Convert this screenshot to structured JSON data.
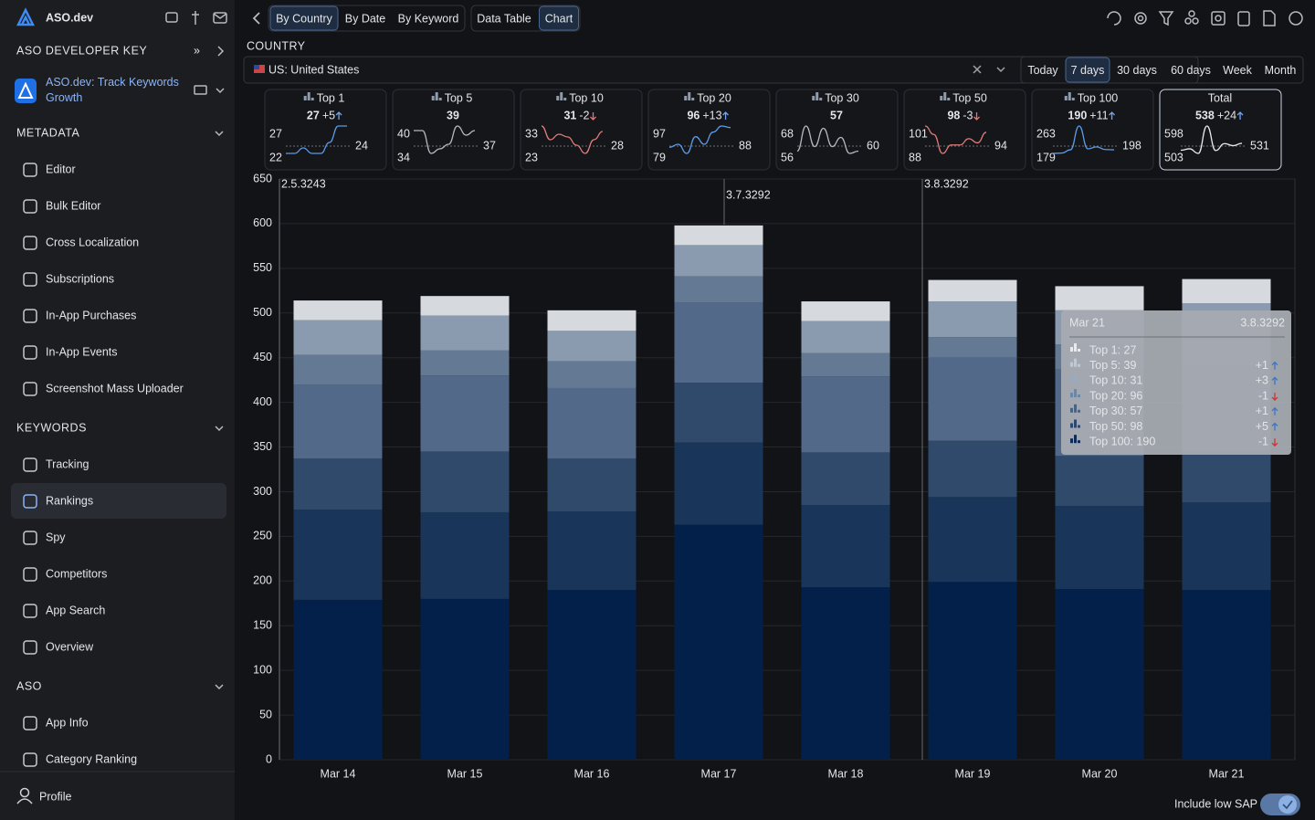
{
  "sidebar": {
    "brand": "ASO.dev",
    "key_section": "ASO DEVELOPER KEY",
    "app_name": "ASO.dev: Track Keywords Growth",
    "sections": [
      {
        "title": "METADATA",
        "items": [
          {
            "label": "Editor"
          },
          {
            "label": "Bulk Editor"
          },
          {
            "label": "Cross Localization"
          },
          {
            "label": "Subscriptions"
          },
          {
            "label": "In-App Purchases"
          },
          {
            "label": "In-App Events"
          },
          {
            "label": "Screenshot Mass Uploader"
          }
        ]
      },
      {
        "title": "KEYWORDS",
        "items": [
          {
            "label": "Tracking"
          },
          {
            "label": "Rankings",
            "active": true
          },
          {
            "label": "Spy"
          },
          {
            "label": "Competitors"
          },
          {
            "label": "App Search"
          },
          {
            "label": "Overview"
          }
        ]
      },
      {
        "title": "ASO",
        "items": [
          {
            "label": "App Info"
          },
          {
            "label": "Category Ranking"
          }
        ]
      }
    ],
    "profile": "Profile"
  },
  "toolbar": {
    "views": [
      {
        "label": "By Country",
        "active": true
      },
      {
        "label": "By Date"
      },
      {
        "label": "By Keyword"
      }
    ],
    "modes": [
      {
        "label": "Data Table"
      },
      {
        "label": "Chart",
        "active": true
      }
    ]
  },
  "filter": {
    "label": "COUNTRY",
    "country": "US: United States",
    "periods": [
      {
        "label": "Today"
      },
      {
        "label": "7 days",
        "active": true
      },
      {
        "label": "30 days"
      },
      {
        "label": "60 days"
      },
      {
        "label": "Week"
      },
      {
        "label": "Month"
      }
    ]
  },
  "cards": [
    {
      "label": "Top 1",
      "value": 27,
      "delta": "+5",
      "trend": "up",
      "max": 27,
      "min": 22,
      "average": 24,
      "color": "#5b9be8"
    },
    {
      "label": "Top 5",
      "value": 39,
      "max": 40,
      "min": 34,
      "average": 37,
      "color": "#b4b8be"
    },
    {
      "label": "Top 10",
      "value": 31,
      "delta": "-2",
      "trend": "down",
      "max": 33,
      "min": 23,
      "average": 28,
      "color": "#e07b78"
    },
    {
      "label": "Top 20",
      "value": 96,
      "delta": "+13",
      "trend": "up",
      "max": 97,
      "min": 79,
      "average": 88,
      "color": "#5b9be8"
    },
    {
      "label": "Top 30",
      "value": 57,
      "max": 68,
      "min": 56,
      "average": 60,
      "color": "#b4b8be"
    },
    {
      "label": "Top 50",
      "value": 98,
      "delta": "-3",
      "trend": "down",
      "max": 101,
      "min": 88,
      "average": 94,
      "color": "#e07b78"
    },
    {
      "label": "Top 100",
      "value": 190,
      "delta": "+11",
      "trend": "up",
      "max": 263,
      "min": 179,
      "average": 198,
      "color": "#5b9be8"
    },
    {
      "label": "Total",
      "value": 538,
      "delta": "+24",
      "trend": "up",
      "max": 598,
      "min": 503,
      "average": 531,
      "color": "#e8eaee",
      "selected": true
    }
  ],
  "chart_data": {
    "type": "stacked-bar",
    "categories": [
      "Mar 14",
      "Mar 15",
      "Mar 16",
      "Mar 17",
      "Mar 18",
      "Mar 19",
      "Mar 20",
      "Mar 21"
    ],
    "series": [
      {
        "name": "Top 1",
        "color": "#d6dadf",
        "values": [
          22,
          22,
          23,
          22,
          22,
          24,
          27,
          27
        ]
      },
      {
        "name": "Top 5",
        "color": "#8a9aaf",
        "values": [
          39,
          39,
          34,
          35,
          36,
          40,
          38,
          39
        ]
      },
      {
        "name": "Top 10",
        "color": "#647a94",
        "values": [
          33,
          28,
          30,
          29,
          26,
          23,
          28,
          31
        ]
      },
      {
        "name": "Top 20",
        "color": "#52698a",
        "values": [
          83,
          85,
          79,
          90,
          85,
          93,
          97,
          96
        ]
      },
      {
        "name": "Top 30",
        "color": "#304a6b",
        "values": [
          57,
          68,
          59,
          67,
          59,
          63,
          56,
          57
        ]
      },
      {
        "name": "Top 50",
        "color": "#1a355a",
        "values": [
          101,
          97,
          88,
          92,
          92,
          95,
          93,
          98
        ]
      },
      {
        "name": "Top 100",
        "color": "#03204a",
        "values": [
          179,
          180,
          190,
          263,
          193,
          199,
          191,
          190
        ]
      }
    ],
    "ylim": [
      0,
      650
    ],
    "yticks": [
      0,
      50,
      100,
      150,
      200,
      250,
      300,
      350,
      400,
      450,
      500,
      550,
      600,
      650
    ],
    "grid": true,
    "annotations": [
      "2.5.3243",
      "3.7.3292",
      "3.8.3292"
    ]
  },
  "tooltip": {
    "title": "Mar 21",
    "version": "3.8.3292",
    "rows": [
      {
        "text": "Top 1: 27"
      },
      {
        "text": "Top 5: 39",
        "delta": "+1",
        "trend": "up"
      },
      {
        "text": "Top 10: 31",
        "delta": "+3",
        "trend": "up"
      },
      {
        "text": "Top 20: 96",
        "delta": "-1",
        "trend": "down"
      },
      {
        "text": "Top 30: 57",
        "delta": "+1",
        "trend": "up"
      },
      {
        "text": "Top 50: 98",
        "delta": "+5",
        "trend": "up"
      },
      {
        "text": "Top 100: 190",
        "delta": "-1",
        "trend": "down"
      }
    ]
  },
  "footer": {
    "toggle_label": "Include low SAP"
  }
}
